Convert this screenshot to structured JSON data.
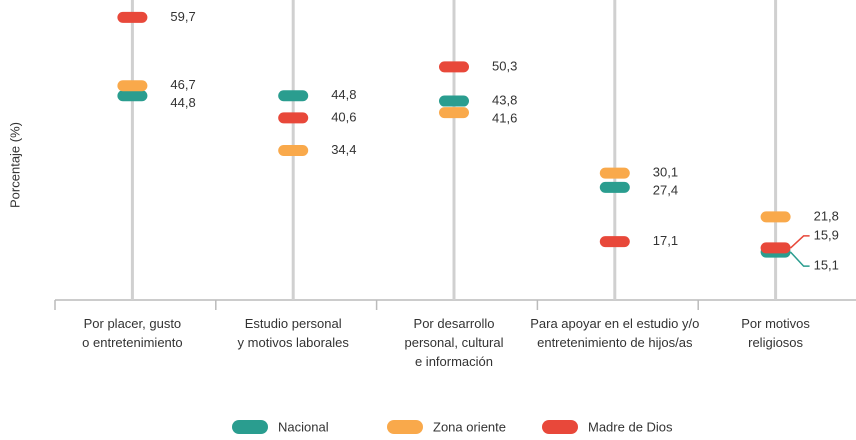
{
  "chart_data": {
    "type": "dot",
    "y_label": "Porcentaje (%)",
    "categories": [
      [
        "Por placer, gusto",
        "o entretenimiento"
      ],
      [
        "Estudio personal",
        "y motivos laborales"
      ],
      [
        "Por desarrollo",
        "personal, cultural",
        "e información"
      ],
      [
        "Para apoyar en el estudio y/o",
        "entretenimiento de hijos/as"
      ],
      [
        "Por motivos",
        "religiosos"
      ]
    ],
    "series": [
      {
        "name": "Nacional",
        "color": "#2a9d8f",
        "values": [
          44.8,
          44.8,
          43.8,
          27.4,
          15.1
        ],
        "value_labels": [
          "44,8",
          "44,8",
          "43,8",
          "27,4",
          "15,1"
        ]
      },
      {
        "name": "Zona oriente",
        "color": "#f9a94b",
        "values": [
          46.7,
          34.4,
          41.6,
          30.1,
          21.8
        ],
        "value_labels": [
          "46,7",
          "34,4",
          "41,6",
          "30,1",
          "21,8"
        ]
      },
      {
        "name": "Madre de Dios",
        "color": "#e8483a",
        "values": [
          59.7,
          40.6,
          50.3,
          17.1,
          15.9
        ],
        "value_labels": [
          "59,7",
          "40,6",
          "50,3",
          "17,1",
          "15,9"
        ]
      }
    ],
    "ylim": [
      6,
      63
    ]
  }
}
